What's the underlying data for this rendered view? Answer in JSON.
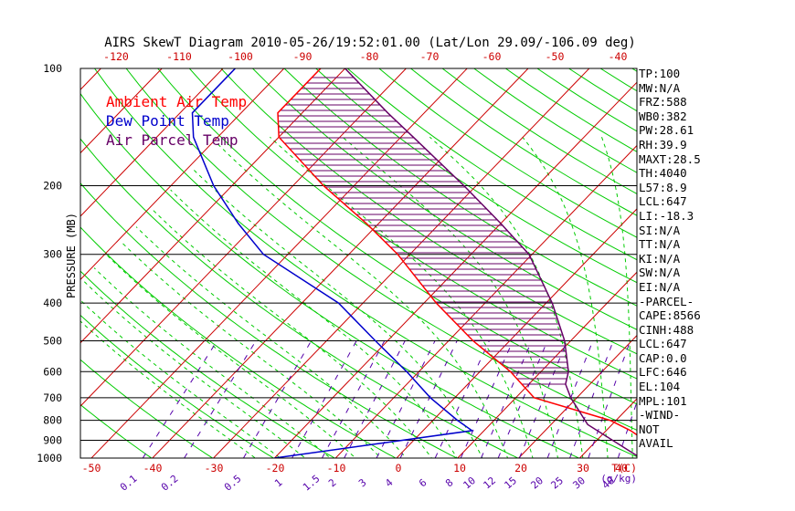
{
  "chart_data": {
    "type": "line",
    "title": "AIRS SkewT Diagram 2010-05-26/19:52:01.00 (Lat/Lon 29.09/-106.09 deg)",
    "ylabel": "PRESSURE (MB)",
    "xlabel": "T(C)",
    "mixing_ratio_unit": "(g/kg)",
    "y_scale": "log (pressure, inverted)",
    "ylim": [
      1000,
      100
    ],
    "bottom_temp_range": [
      -50,
      40
    ],
    "top_temp_range": [
      -125,
      -35
    ],
    "pressure_ticks": [
      "100",
      "200",
      "300",
      "400",
      "500",
      "600",
      "700",
      "800",
      "900",
      "1000"
    ],
    "temp_ticks_bottom": [
      "-50",
      "-40",
      "-30",
      "-20",
      "-10",
      "0",
      "10",
      "20",
      "30",
      "40"
    ],
    "temp_ticks_top": [
      "-120",
      "-110",
      "-100",
      "-90",
      "-80",
      "-70",
      "-60",
      "-50",
      "-40"
    ],
    "mixing_ratio_labels": [
      "0.1",
      "0.2",
      "0.5",
      "1",
      "1.5",
      "2",
      "3",
      "4",
      "6",
      "8",
      "10",
      "12",
      "15",
      "20",
      "25",
      "30",
      "40"
    ],
    "legend": [
      "Ambient Air Temp",
      "Dew Point Temp",
      "Air Parcel Temp"
    ],
    "legend_position": "top-left",
    "grid": true,
    "series": [
      {
        "name": "Ambient Air Temp",
        "color": "#ff0000",
        "pressure": [
          1000,
          850,
          800,
          700,
          600,
          500,
          400,
          300,
          250,
          200,
          150,
          130,
          100
        ],
        "temp": [
          45,
          34,
          29,
          13,
          5,
          -6,
          -18,
          -32,
          -42,
          -55,
          -70,
          -74,
          -74
        ]
      },
      {
        "name": "Dew Point Temp",
        "color": "#0000cc",
        "pressure": [
          1000,
          850,
          800,
          700,
          600,
          500,
          400,
          300,
          250,
          200,
          150,
          130,
          100
        ],
        "temp": [
          -20,
          8,
          4,
          -4,
          -12,
          -22,
          -34,
          -54,
          -63,
          -73,
          -84,
          -88,
          -88
        ]
      },
      {
        "name": "Air Parcel Temp",
        "color": "#660066",
        "pressure": [
          1000,
          820,
          700,
          646,
          600,
          500,
          400,
          300,
          250,
          200,
          150,
          130,
          100
        ],
        "temp": [
          40,
          26,
          19,
          16,
          14.5,
          9,
          1,
          -10.5,
          -20,
          -32,
          -48,
          -56,
          -70
        ]
      }
    ]
  },
  "stats": [
    "TP:100",
    "MW:N/A",
    "FRZ:588",
    "WB0:382",
    "PW:28.61",
    "RH:39.9",
    "MAXT:28.5",
    "TH:4040",
    "L57:8.9",
    "LCL:647",
    "LI:-18.3",
    "SI:N/A",
    "TT:N/A",
    "KI:N/A",
    "SW:N/A",
    "EI:N/A",
    "-PARCEL-",
    "CAPE:8566",
    "CINH:488",
    "LCL:647",
    "CAP:0.0",
    "LFC:646",
    "EL:104",
    "MPL:101",
    "-WIND-",
    "NOT",
    "AVAIL"
  ],
  "colors": {
    "ambient": "#ff0000",
    "dewpoint": "#0000cc",
    "parcel": "#660066",
    "isotherm": "#cc0000",
    "dry_adiabat": "#00cc00",
    "moist_adiabat": "#00cc00",
    "mixing_ratio": "#5500aa",
    "axis_top_labels": "#cc0000",
    "axis_bottom_labels": "#cc0000"
  }
}
